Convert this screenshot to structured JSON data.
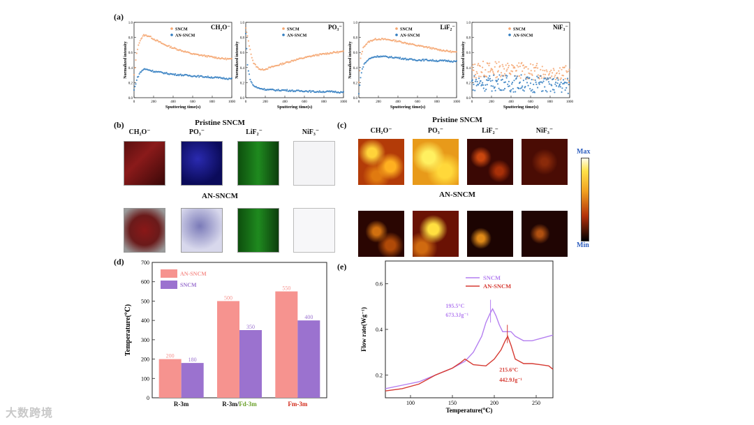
{
  "panels": {
    "a": "(a)",
    "b": "(b)",
    "c": "(c)",
    "d": "(d)",
    "e": "(e)"
  },
  "section_b": {
    "pristine_title": "Pristine SNCM",
    "an_title": "AN-SNCM",
    "ions": [
      "CH₂O⁻",
      "PO₃⁻",
      "LiF₂⁻",
      "NiF₃⁻"
    ]
  },
  "section_c": {
    "pristine_title": "Pristine SNCM",
    "an_title": "AN-SNCM",
    "ions": [
      "CH₂O⁻",
      "PO₃⁻",
      "LiF₂⁻",
      "NiF₃⁻"
    ],
    "colorbar_max": "Max",
    "colorbar_min": "Min"
  },
  "watermark": "大数跨境",
  "colors": {
    "sncm_orange": "#f4a46e",
    "ansncm_blue": "#2f7bbf",
    "bar_pink": "#f6938f",
    "bar_purple": "#9b72cf",
    "dsc_purple": "#b47ff0",
    "dsc_red": "#d63a32",
    "label_green": "#6aa02a",
    "label_red": "#d12a1a"
  },
  "chart_data": [
    {
      "type": "scatter",
      "id": "a1",
      "ion": "CH₂O⁻",
      "xlabel": "Sputtering time(s)",
      "ylabel": "Normalized intensity",
      "xlim": [
        0,
        1000
      ],
      "ylim": [
        0,
        1.0
      ],
      "xticks": [
        0,
        200,
        400,
        600,
        800,
        1000
      ],
      "yticks": [
        0,
        0.2,
        0.4,
        0.6,
        0.8,
        1.0
      ],
      "legend": [
        "SNCM",
        "AN-SNCM"
      ],
      "series": [
        {
          "name": "SNCM",
          "x": [
            0,
            30,
            60,
            100,
            150,
            200,
            300,
            400,
            500,
            600,
            700,
            800,
            900,
            1000
          ],
          "y": [
            0.3,
            0.62,
            0.76,
            0.83,
            0.82,
            0.78,
            0.71,
            0.66,
            0.62,
            0.58,
            0.56,
            0.54,
            0.52,
            0.51
          ]
        },
        {
          "name": "AN-SNCM",
          "x": [
            0,
            30,
            60,
            100,
            150,
            200,
            300,
            400,
            500,
            600,
            700,
            800,
            900,
            1000
          ],
          "y": [
            0.1,
            0.25,
            0.33,
            0.38,
            0.37,
            0.35,
            0.33,
            0.31,
            0.3,
            0.29,
            0.28,
            0.27,
            0.26,
            0.25
          ]
        }
      ]
    },
    {
      "type": "scatter",
      "id": "a2",
      "ion": "PO₃⁻",
      "xlabel": "Sputtering time(s)",
      "ylabel": "Normalized intensity",
      "xlim": [
        0,
        1000
      ],
      "ylim": [
        0,
        1.0
      ],
      "xticks": [
        0,
        200,
        400,
        600,
        800,
        1000
      ],
      "yticks": [
        0,
        0.2,
        0.4,
        0.6,
        0.8,
        1.0
      ],
      "legend": [
        "SNCM",
        "AN-SNCM"
      ],
      "series": [
        {
          "name": "SNCM",
          "x": [
            0,
            20,
            50,
            80,
            120,
            160,
            200,
            300,
            400,
            500,
            600,
            700,
            800,
            900,
            1000
          ],
          "y": [
            0.92,
            0.8,
            0.6,
            0.46,
            0.4,
            0.37,
            0.38,
            0.42,
            0.46,
            0.5,
            0.53,
            0.56,
            0.58,
            0.6,
            0.61
          ]
        },
        {
          "name": "AN-SNCM",
          "x": [
            0,
            20,
            50,
            80,
            120,
            160,
            200,
            300,
            400,
            500,
            600,
            700,
            800,
            900,
            1000
          ],
          "y": [
            0.85,
            0.4,
            0.22,
            0.16,
            0.13,
            0.12,
            0.11,
            0.1,
            0.1,
            0.09,
            0.09,
            0.08,
            0.08,
            0.08,
            0.07
          ]
        }
      ]
    },
    {
      "type": "scatter",
      "id": "a3",
      "ion": "LiF₂⁻",
      "xlabel": "Sputtering time(s)",
      "ylabel": "Normalized intensity",
      "xlim": [
        0,
        1000
      ],
      "ylim": [
        0,
        1.0
      ],
      "xticks": [
        0,
        200,
        400,
        600,
        800,
        1000
      ],
      "yticks": [
        0,
        0.2,
        0.4,
        0.6,
        0.8,
        1.0
      ],
      "legend": [
        "SNCM",
        "AN-SNCM"
      ],
      "series": [
        {
          "name": "SNCM",
          "x": [
            0,
            20,
            50,
            100,
            150,
            200,
            300,
            400,
            500,
            600,
            700,
            800,
            900,
            1000
          ],
          "y": [
            0.2,
            0.55,
            0.68,
            0.74,
            0.77,
            0.78,
            0.77,
            0.75,
            0.72,
            0.69,
            0.67,
            0.64,
            0.62,
            0.6
          ]
        },
        {
          "name": "AN-SNCM",
          "x": [
            0,
            20,
            50,
            100,
            150,
            200,
            300,
            400,
            500,
            600,
            700,
            800,
            900,
            1000
          ],
          "y": [
            0.05,
            0.3,
            0.44,
            0.51,
            0.54,
            0.55,
            0.54,
            0.53,
            0.51,
            0.5,
            0.5,
            0.49,
            0.49,
            0.48
          ]
        }
      ]
    },
    {
      "type": "scatter",
      "id": "a4",
      "ion": "NiF₃⁻",
      "xlabel": "Sputtering time(s)",
      "ylabel": "Normalized intensity",
      "xlim": [
        0,
        1000
      ],
      "ylim": [
        0,
        1.0
      ],
      "xticks": [
        0,
        200,
        400,
        600,
        800,
        1000
      ],
      "yticks": [
        0,
        0.2,
        0.4,
        0.6,
        0.8,
        1.0
      ],
      "legend": [
        "SNCM",
        "AN-SNCM"
      ],
      "series": [
        {
          "name": "SNCM",
          "x": [
            0,
            100,
            200,
            300,
            400,
            500,
            600,
            700,
            800,
            900,
            1000
          ],
          "y": [
            0.35,
            0.38,
            0.36,
            0.39,
            0.35,
            0.37,
            0.34,
            0.36,
            0.33,
            0.35,
            0.3
          ]
        },
        {
          "name": "AN-SNCM",
          "x": [
            0,
            100,
            200,
            300,
            400,
            500,
            600,
            700,
            800,
            900,
            1000
          ],
          "y": [
            0.2,
            0.2,
            0.19,
            0.21,
            0.18,
            0.2,
            0.17,
            0.19,
            0.16,
            0.17,
            0.15
          ]
        }
      ]
    },
    {
      "type": "bar",
      "id": "d",
      "ylabel": "Temperature(℃)",
      "ylim": [
        0,
        700
      ],
      "yticks": [
        0,
        100,
        200,
        300,
        400,
        500,
        600,
        700
      ],
      "categories": [
        "R-3m",
        "R-3m/Fd-3m",
        "Fm-3m"
      ],
      "category_parts": [
        [
          "R-3m"
        ],
        [
          "R-3m/",
          "Fd-3m"
        ],
        [
          "Fm-3m"
        ]
      ],
      "series": [
        {
          "name": "AN-SNCM",
          "values": [
            200,
            500,
            550
          ]
        },
        {
          "name": "SNCM",
          "values": [
            180,
            350,
            400
          ]
        }
      ]
    },
    {
      "type": "line",
      "id": "e",
      "xlabel": "Temperature(℃)",
      "ylabel": "Flow rate(Wg⁻¹)",
      "xlim": [
        70,
        270
      ],
      "ylim": [
        0.1,
        0.7
      ],
      "xticks": [
        100,
        150,
        200,
        250
      ],
      "yticks": [
        0.2,
        0.4,
        0.6
      ],
      "series": [
        {
          "name": "SNCM",
          "x": [
            70,
            90,
            110,
            130,
            150,
            165,
            175,
            185,
            190,
            195,
            198,
            202,
            206,
            210,
            215,
            220,
            225,
            235,
            245,
            255,
            270
          ],
          "y": [
            0.14,
            0.155,
            0.17,
            0.2,
            0.23,
            0.26,
            0.3,
            0.37,
            0.43,
            0.47,
            0.49,
            0.46,
            0.42,
            0.39,
            0.39,
            0.39,
            0.37,
            0.35,
            0.35,
            0.36,
            0.375
          ]
        },
        {
          "name": "AN-SNCM",
          "x": [
            70,
            90,
            110,
            130,
            150,
            160,
            165,
            175,
            190,
            200,
            208,
            213,
            216,
            220,
            225,
            235,
            245,
            255,
            265,
            270
          ],
          "y": [
            0.13,
            0.14,
            0.16,
            0.2,
            0.23,
            0.255,
            0.27,
            0.245,
            0.24,
            0.27,
            0.31,
            0.35,
            0.37,
            0.33,
            0.27,
            0.25,
            0.25,
            0.245,
            0.24,
            0.225
          ]
        }
      ],
      "annotations": [
        {
          "text": "195.5°C",
          "series": "SNCM"
        },
        {
          "text": "673.3Jg⁻¹",
          "series": "SNCM"
        },
        {
          "text": "215.6°C",
          "series": "AN-SNCM"
        },
        {
          "text": "442.9Jg⁻¹",
          "series": "AN-SNCM"
        }
      ]
    }
  ]
}
